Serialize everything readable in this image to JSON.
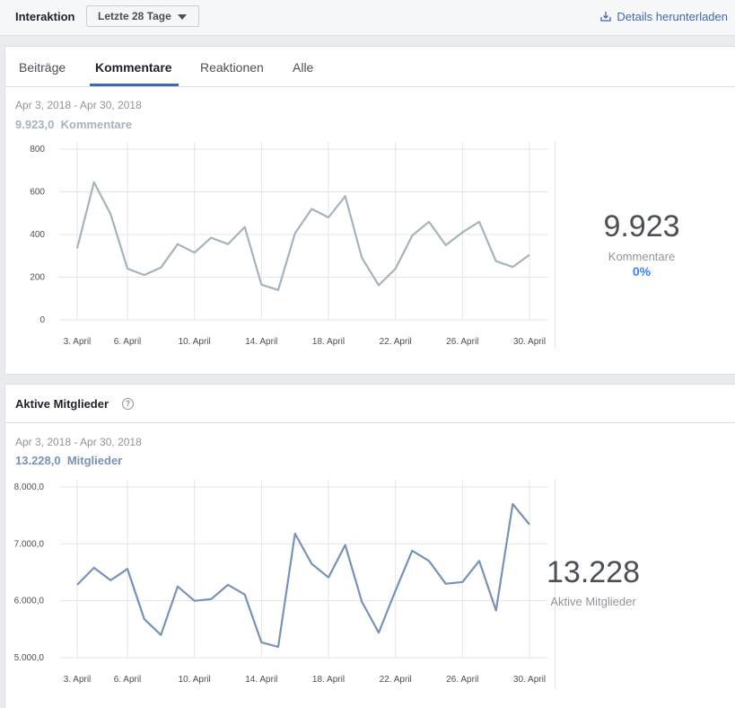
{
  "header": {
    "title": "Interaktion",
    "range_selector": "Letzte 28 Tage",
    "download_label": "Details herunterladen"
  },
  "tabs": [
    {
      "label": "Beiträge",
      "active": false
    },
    {
      "label": "Kommentare",
      "active": true
    },
    {
      "label": "Reaktionen",
      "active": false
    },
    {
      "label": "Alle",
      "active": false
    }
  ],
  "comments": {
    "date_range": "Apr 3, 2018 - Apr 30, 2018",
    "total_value": "9.923,0",
    "total_unit": "Kommentare",
    "big_number": "9.923",
    "big_label": "Kommentare",
    "change_pct": "0%",
    "line_color": "#a4b3bc"
  },
  "members": {
    "section_title": "Aktive Mitglieder",
    "help_icon": "?",
    "date_range": "Apr 3, 2018 - Apr 30, 2018",
    "total_value": "13.228,0",
    "total_unit": "Mitglieder",
    "big_number": "13.228",
    "big_label": "Aktive Mitglieder",
    "line_color": "#7891b9"
  },
  "colors": {
    "accent": "#4267b2",
    "pct": "#4080ff"
  },
  "chart_data": [
    {
      "type": "line",
      "x": [
        "3. April",
        "4. April",
        "5. April",
        "6. April",
        "7. April",
        "8. April",
        "9. April",
        "10. April",
        "11. April",
        "12. April",
        "13. April",
        "14. April",
        "15. April",
        "16. April",
        "17. April",
        "18. April",
        "19. April",
        "20. April",
        "21. April",
        "22. April",
        "23. April",
        "24. April",
        "25. April",
        "26. April",
        "27. April",
        "28. April",
        "29. April",
        "30. April"
      ],
      "x_tick_labels": [
        "3. April",
        "6. April",
        "10. April",
        "14. April",
        "18. April",
        "22. April",
        "26. April",
        "30. April"
      ],
      "x_tick_index": [
        0,
        3,
        7,
        11,
        15,
        19,
        23,
        27
      ],
      "y_ticks": [
        "0",
        "200",
        "400",
        "600",
        "800"
      ],
      "ylim": [
        0,
        800
      ],
      "series": [
        {
          "values": [
            335,
            645,
            495,
            240,
            210,
            245,
            355,
            315,
            385,
            355,
            435,
            165,
            140,
            405,
            520,
            480,
            580,
            290,
            162,
            240,
            395,
            460,
            350,
            410,
            460,
            275,
            248,
            305
          ]
        }
      ]
    },
    {
      "type": "line",
      "x": [
        "3. April",
        "4. April",
        "5. April",
        "6. April",
        "7. April",
        "8. April",
        "9. April",
        "10. April",
        "11. April",
        "12. April",
        "13. April",
        "14. April",
        "15. April",
        "16. April",
        "17. April",
        "18. April",
        "19. April",
        "20. April",
        "21. April",
        "22. April",
        "23. April",
        "24. April",
        "25. April",
        "26. April",
        "27. April",
        "28. April",
        "29. April",
        "30. April"
      ],
      "x_tick_labels": [
        "3. April",
        "6. April",
        "10. April",
        "14. April",
        "18. April",
        "22. April",
        "26. April",
        "30. April"
      ],
      "x_tick_index": [
        0,
        3,
        7,
        11,
        15,
        19,
        23,
        27
      ],
      "y_ticks": [
        "5.000,0",
        "6.000,0",
        "7.000,0",
        "8.000,0"
      ],
      "ylim": [
        5000,
        8000
      ],
      "series": [
        {
          "values": [
            6280,
            6580,
            6360,
            6560,
            5680,
            5400,
            6250,
            6000,
            6030,
            6280,
            6110,
            5270,
            5190,
            7180,
            6650,
            6410,
            6980,
            5980,
            5440,
            6180,
            6880,
            6700,
            6300,
            6330,
            6700,
            5830,
            7700,
            7340
          ]
        }
      ]
    }
  ]
}
